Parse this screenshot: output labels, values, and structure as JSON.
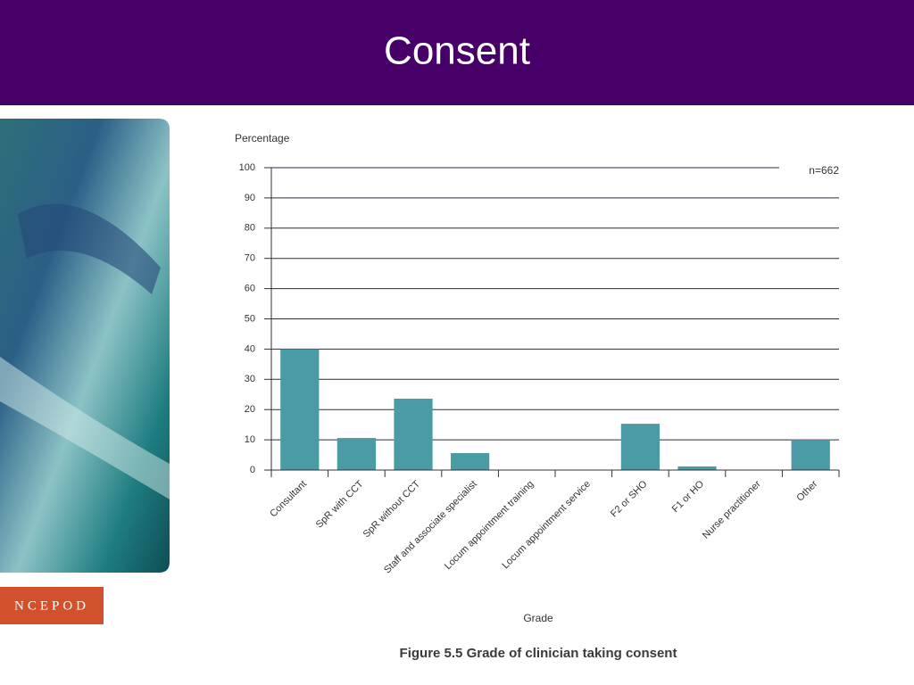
{
  "header": {
    "title": "Consent"
  },
  "logo": {
    "text": "NCEPOD"
  },
  "chart_data": {
    "type": "bar",
    "y_axis_label": "Percentage",
    "x_axis_label": "Grade",
    "annotation": "n=662",
    "caption": "Figure 5.5 Grade of clinician taking consent",
    "categories": [
      "Consultant",
      "SpR with CCT",
      "SpR without CCT",
      "Staff and associate specialist",
      "Locum appointment training",
      "Locum appointment service",
      "F2 or SHO",
      "F1 or HO",
      "Nurse practitioner",
      "Other"
    ],
    "values": [
      40,
      10.6,
      23.6,
      5.6,
      0,
      0,
      15.3,
      1.2,
      0,
      10
    ],
    "color": "#4a9ba6",
    "ylim": [
      0,
      100
    ],
    "yticks": [
      0,
      10,
      20,
      30,
      40,
      50,
      60,
      70,
      80,
      90,
      100
    ],
    "grid": true
  }
}
